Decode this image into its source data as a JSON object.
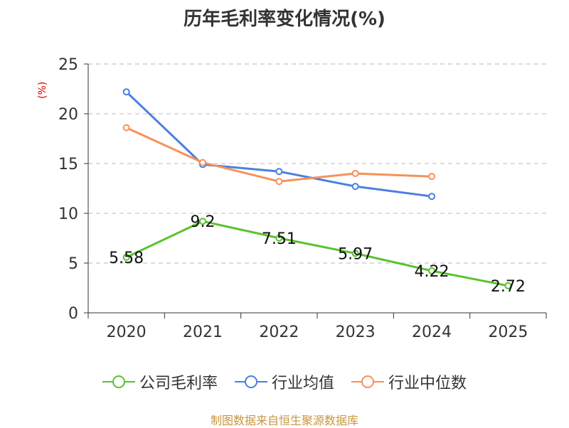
{
  "chart_data": {
    "type": "line",
    "title": "历年毛利率变化情况(%)",
    "ylabel": "(%)",
    "xlabel": "",
    "categories": [
      "2020",
      "2021",
      "2022",
      "2023",
      "2024",
      "2025"
    ],
    "ylim": [
      0,
      25
    ],
    "yticks": [
      0,
      5,
      10,
      15,
      20,
      25
    ],
    "grid": true,
    "legend_position": "bottom",
    "series": [
      {
        "name": "公司毛利率",
        "color": "#5ac22e",
        "values": [
          5.58,
          9.2,
          7.51,
          5.97,
          4.22,
          2.72
        ],
        "labels": [
          "5.58",
          "9.2",
          "7.51",
          "5.97",
          "4.22",
          "2.72"
        ]
      },
      {
        "name": "行业均值",
        "color": "#4a7fe0",
        "values": [
          22.2,
          14.9,
          14.2,
          12.7,
          11.7,
          null
        ]
      },
      {
        "name": "行业中位数",
        "color": "#f7905a",
        "values": [
          18.6,
          15.1,
          13.2,
          14.0,
          13.7,
          null
        ]
      }
    ]
  },
  "source": "制图数据来自恒生聚源数据库"
}
